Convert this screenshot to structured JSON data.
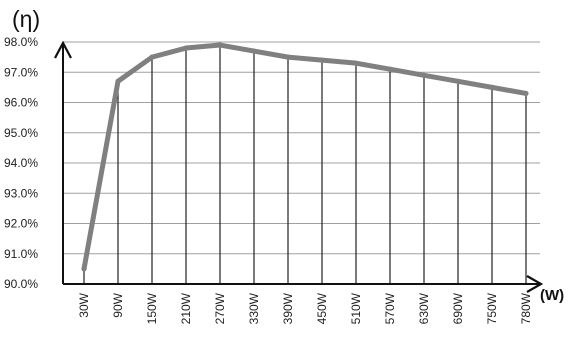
{
  "chart_data": {
    "type": "line",
    "title": "",
    "ylabel": "(η)",
    "xlabel": "(W)",
    "ylim": [
      90,
      98
    ],
    "yticks": [
      "98.0%",
      "97.0%",
      "96.0%",
      "95.0%",
      "94.0%",
      "93.0%",
      "92.0%",
      "91.0%",
      "90.0%"
    ],
    "categories": [
      "30W",
      "90W",
      "150W",
      "210W",
      "270W",
      "330W",
      "390W",
      "450W",
      "510W",
      "570W",
      "630W",
      "690W",
      "750W",
      "780W"
    ],
    "values": [
      90.5,
      96.7,
      97.5,
      97.8,
      97.9,
      97.7,
      97.5,
      97.4,
      97.3,
      97.1,
      96.9,
      96.7,
      96.5,
      96.3
    ],
    "grid": true,
    "colors": {
      "line": "#808080",
      "grid": "#a0a0a0",
      "axis": "#111111"
    }
  }
}
